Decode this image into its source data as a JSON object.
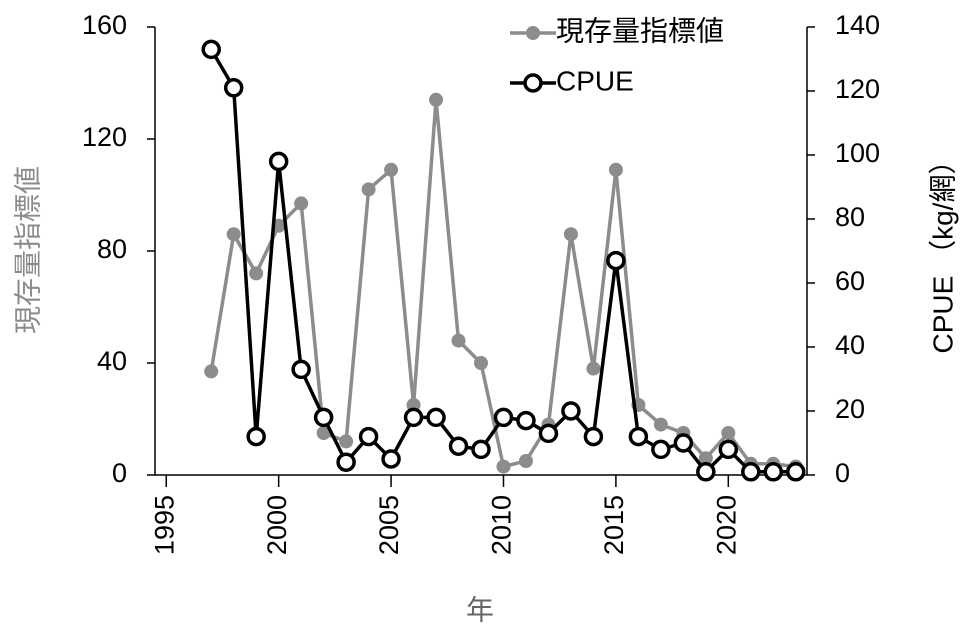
{
  "chart_data": {
    "type": "line",
    "x_label": "年",
    "y_label": "現存量指標値",
    "y2_label": "CPUE （kg/網）",
    "x": [
      1997,
      1998,
      1999,
      2000,
      2001,
      2002,
      2003,
      2004,
      2005,
      2006,
      2007,
      2008,
      2009,
      2010,
      2011,
      2012,
      2013,
      2014,
      2015,
      2016,
      2017,
      2018,
      2019,
      2020,
      2021,
      2022,
      2023
    ],
    "series": [
      {
        "name": "現存量指標値",
        "color": "#8c8c8c",
        "axis": "y",
        "values": [
          37,
          86,
          72,
          89,
          97,
          15,
          12,
          102,
          109,
          25,
          134,
          48,
          40,
          3,
          5,
          18,
          86,
          38,
          109,
          25,
          18,
          15,
          6,
          15,
          4,
          4,
          3
        ]
      },
      {
        "name": "CPUE",
        "color": "#000000",
        "axis": "y2",
        "values": [
          133,
          121,
          12,
          98,
          33,
          18,
          4,
          12,
          5,
          18,
          18,
          9,
          8,
          18,
          17,
          13,
          20,
          12,
          67,
          12,
          8,
          10,
          1,
          8,
          1,
          1,
          1
        ]
      }
    ],
    "xlim": [
      1994.5,
      2023.5
    ],
    "xticks": [
      1995,
      2000,
      2005,
      2010,
      2015,
      2020
    ],
    "ylim": [
      0,
      160
    ],
    "yticks": [
      0,
      40,
      80,
      120,
      160
    ],
    "y2lim": [
      0,
      140
    ],
    "y2ticks": [
      0,
      20,
      40,
      60,
      80,
      100,
      120,
      140
    ],
    "legend": "upper right"
  }
}
